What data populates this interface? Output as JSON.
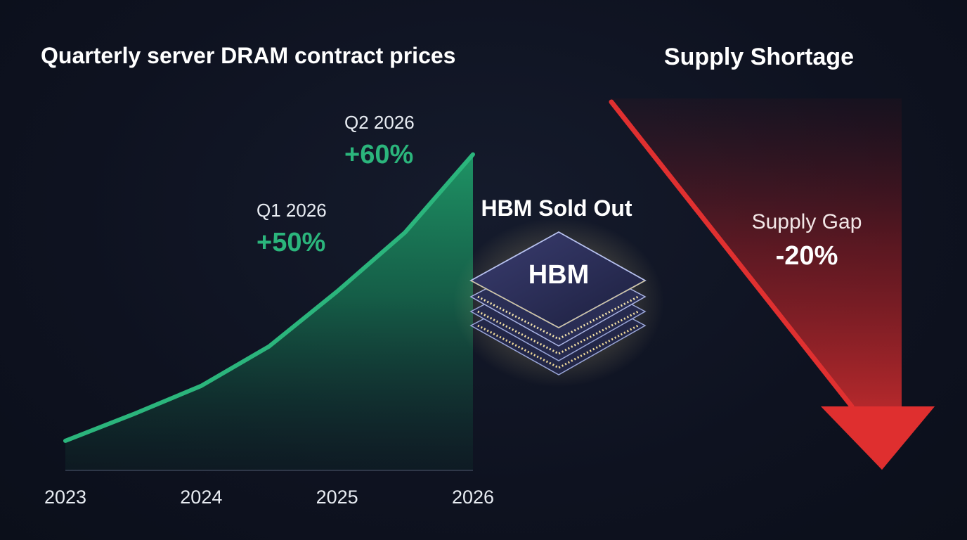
{
  "chart_data": {
    "type": "area",
    "title": "Quarterly server DRAM contract prices",
    "xlabel": "",
    "ylabel": "",
    "x_ticks": [
      "2023",
      "2024",
      "2025",
      "2026"
    ],
    "x": [
      2023.0,
      2023.5,
      2024.0,
      2024.5,
      2025.0,
      2025.5,
      2026.0
    ],
    "y": [
      0.0,
      8.6,
      17.8,
      30.6,
      48.4,
      67.5,
      92.8
    ],
    "xlim": [
      2023.0,
      2026.0
    ],
    "ylim": [
      -9.6,
      100
    ],
    "grid": false,
    "color": "#2bb57c",
    "annotations": [
      {
        "quarter": "Q1 2026",
        "change": "+50%"
      },
      {
        "quarter": "Q2 2026",
        "change": "+60%"
      }
    ]
  },
  "hbm": {
    "heading": "HBM Sold Out",
    "chip_label": "HBM"
  },
  "supply": {
    "title": "Supply Shortage",
    "gap_label": "Supply Gap",
    "gap_value": "-20%",
    "color": "#e03030"
  }
}
